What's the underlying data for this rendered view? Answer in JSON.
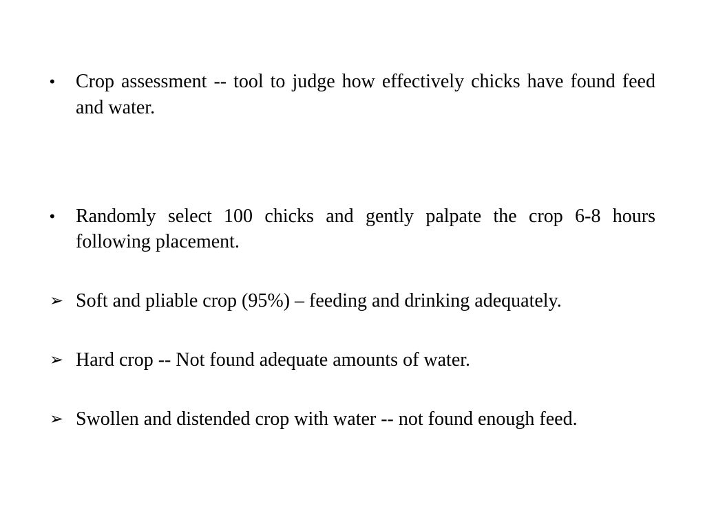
{
  "slide": {
    "background_color": "#ffffff",
    "text_color": "#000000",
    "font_family": "Times New Roman",
    "body_fontsize_pt": 21,
    "items": [
      {
        "marker": "dot",
        "justify": true,
        "gap_after": "lg",
        "text": "Crop assessment -- tool to judge how effectively chicks have found feed and water."
      },
      {
        "marker": "dot",
        "justify": true,
        "gap_after": "md",
        "text": "Randomly select 100 chicks and gently palpate the crop 6-8 hours following placement."
      },
      {
        "marker": "arrow",
        "justify": false,
        "gap_after": "md",
        "text": "Soft and pliable crop (95%) – feeding and drinking adequately."
      },
      {
        "marker": "arrow",
        "justify": false,
        "gap_after": "md",
        "text": "Hard crop -- Not found adequate amounts of water."
      },
      {
        "marker": "arrow",
        "justify": false,
        "gap_after": "none",
        "text": "Swollen and distended crop with water -- not found enough feed."
      }
    ],
    "markers": {
      "dot": "•",
      "arrow": "➢"
    }
  }
}
